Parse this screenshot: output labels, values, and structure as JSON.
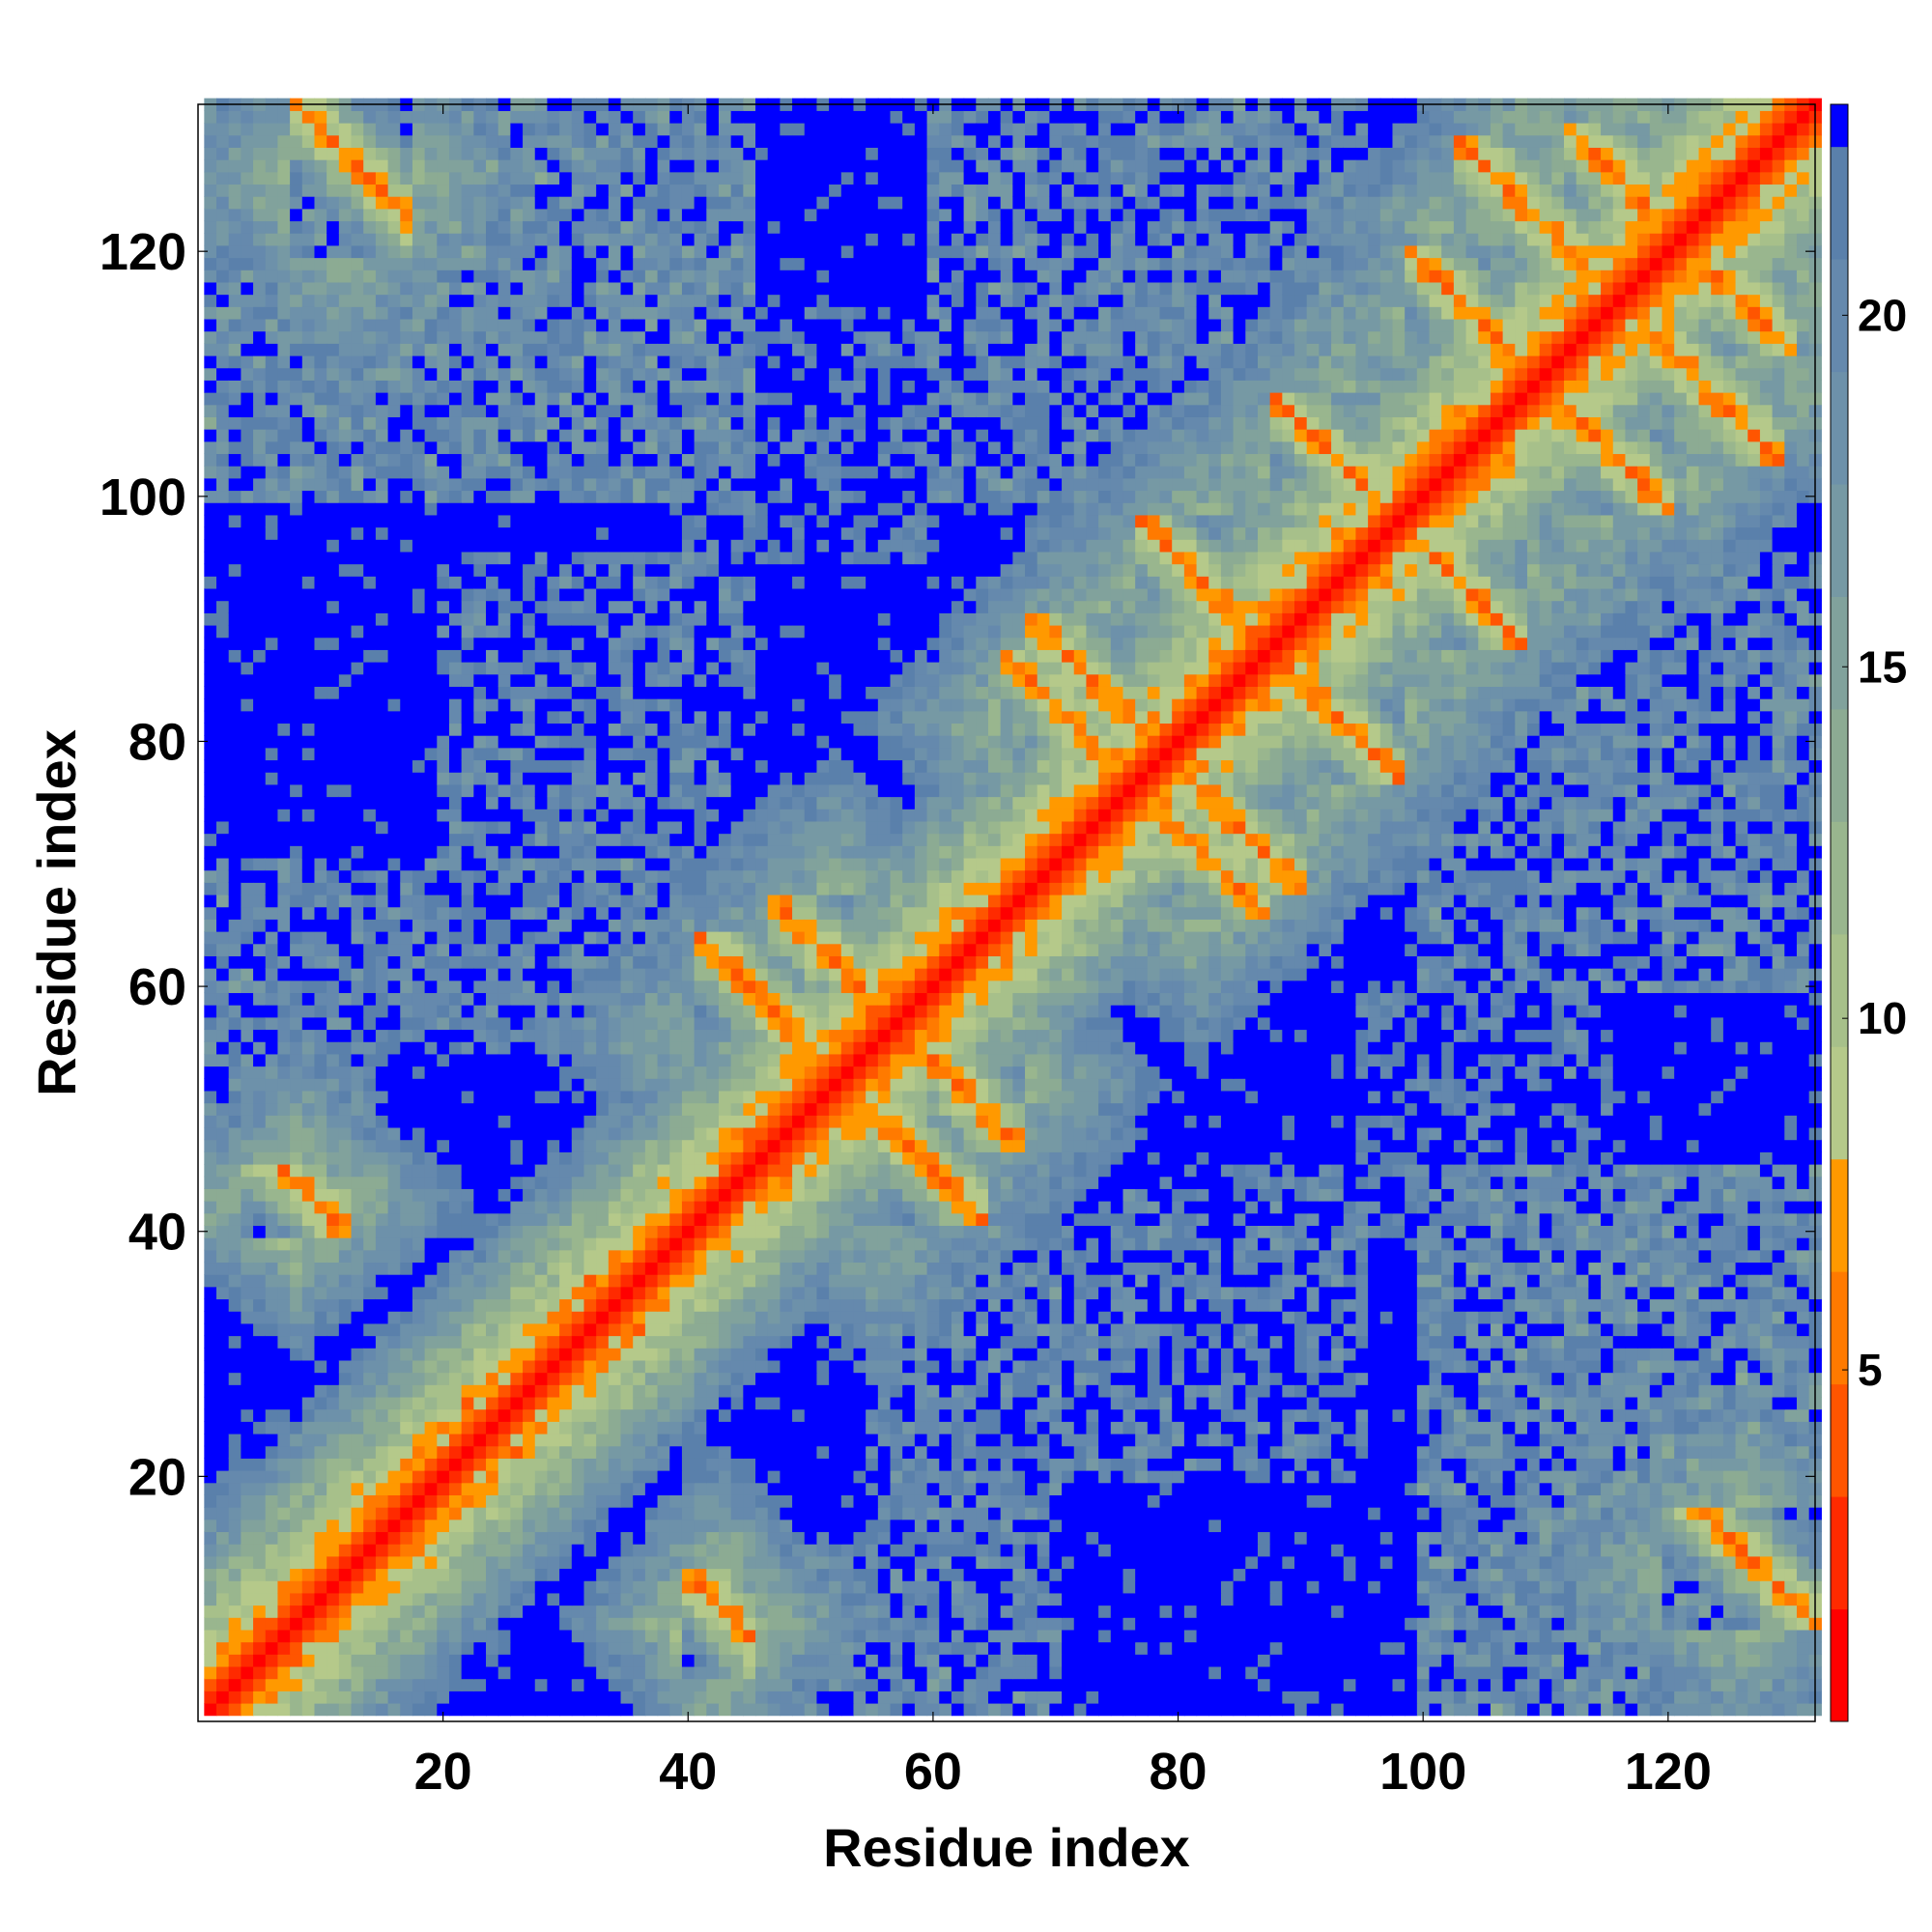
{
  "chart_data": {
    "type": "heatmap",
    "title": "",
    "xlabel": "Residue index",
    "ylabel": "Residue index",
    "xlim": [
      1,
      132
    ],
    "ylim": [
      1,
      132
    ],
    "n_residues": 132,
    "x_ticks": [
      20,
      40,
      60,
      80,
      100,
      120
    ],
    "y_ticks": [
      20,
      40,
      60,
      80,
      100,
      120
    ],
    "colorbar": {
      "range": [
        0,
        23
      ],
      "ticks": [
        5,
        10,
        15,
        20
      ],
      "clip_value": 22,
      "levels": [
        {
          "max": 1.6,
          "color": "#ff0000"
        },
        {
          "max": 3.2,
          "color": "#ff2a00"
        },
        {
          "max": 4.8,
          "color": "#ff5500"
        },
        {
          "max": 6.4,
          "color": "#ff7a00"
        },
        {
          "max": 8.0,
          "color": "#ff9900"
        },
        {
          "max": 9.6,
          "color": "#b5c98a"
        },
        {
          "max": 11.2,
          "color": "#a7c08a"
        },
        {
          "max": 12.8,
          "color": "#99b68e"
        },
        {
          "max": 14.4,
          "color": "#8cab93"
        },
        {
          "max": 16.0,
          "color": "#81a29c"
        },
        {
          "max": 17.6,
          "color": "#7699a4"
        },
        {
          "max": 19.2,
          "color": "#6d91aa"
        },
        {
          "max": 20.8,
          "color": "#6589ad"
        },
        {
          "max": 22.4,
          "color": "#5a80ab"
        },
        {
          "max": 999,
          "color": "#0000ff"
        }
      ]
    },
    "secondary_structure": {
      "helix_segments": [
        [
          1,
          12
        ],
        [
          14,
          38
        ]
      ],
      "strand_pairs": [
        {
          "a": [
            47,
            57
          ],
          "b": [
            57,
            67
          ],
          "orientation": "anti"
        },
        {
          "a": [
            41,
            57
          ],
          "b": [
            47,
            64
          ],
          "orientation": "anti"
        },
        {
          "a": [
            68,
            78
          ],
          "b": [
            78,
            90
          ],
          "orientation": "anti"
        },
        {
          "a": [
            66,
            73
          ],
          "b": [
            76,
            87
          ],
          "orientation": "anti"
        },
        {
          "a": [
            77,
            88
          ],
          "b": [
            88,
            98
          ],
          "orientation": "anti"
        },
        {
          "a": [
            88,
            98
          ],
          "b": [
            98,
            108
          ],
          "orientation": "anti"
        },
        {
          "a": [
            99,
            111
          ],
          "b": [
            108,
            120
          ],
          "orientation": "anti"
        },
        {
          "a": [
            103,
            115
          ],
          "b": [
            115,
            129
          ],
          "orientation": "anti"
        },
        {
          "a": [
            112,
            121
          ],
          "b": [
            121,
            130
          ],
          "orientation": "anti"
        },
        {
          "a": [
            8,
            17
          ],
          "b": [
            120,
            132
          ],
          "orientation": "anti"
        },
        {
          "a": [
            40,
            45
          ],
          "b": [
            4,
            12
          ],
          "orientation": "anti"
        }
      ]
    }
  }
}
